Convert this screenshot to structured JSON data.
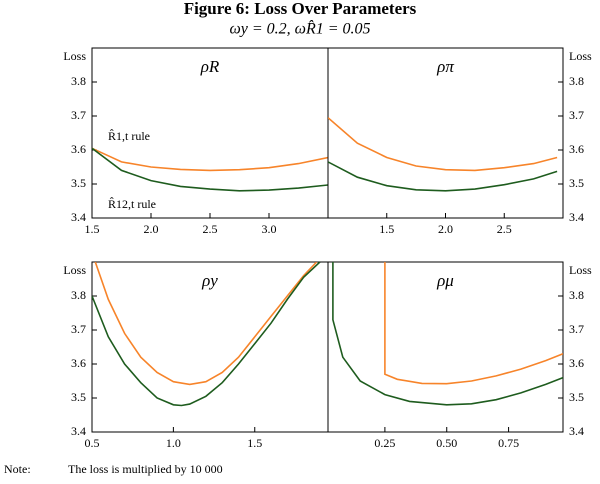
{
  "title": "Figure 6: Loss Over Parameters",
  "subtitle": "ωy = 0.2, ωR̂1 = 0.05",
  "note_label": "Note:",
  "note": "The loss is multiplied by 10 000",
  "chart_data": [
    {
      "type": "line",
      "title": "ρR",
      "ylabel": "Loss",
      "xlim": [
        1.5,
        3.5
      ],
      "xticks": [
        1.5,
        {
          "value": 2.0,
          "label": "2.0"
        },
        2.5,
        {
          "value": 3.0,
          "label": "3.0"
        }
      ],
      "ylim": [
        3.4,
        3.9
      ],
      "yticks": [
        3.4,
        3.5,
        3.6,
        3.7,
        3.8
      ],
      "series": [
        {
          "name": "R̂1,t rule",
          "color": "#f7842a",
          "x": [
            1.5,
            1.75,
            2.0,
            2.25,
            2.5,
            2.75,
            3.0,
            3.25,
            3.5
          ],
          "values": [
            3.605,
            3.565,
            3.55,
            3.543,
            3.54,
            3.542,
            3.548,
            3.56,
            3.578
          ]
        },
        {
          "name": "R̂12,t rule",
          "color": "#1e5c1e",
          "x": [
            1.5,
            1.75,
            2.0,
            2.25,
            2.5,
            2.75,
            3.0,
            3.25,
            3.5
          ],
          "values": [
            3.605,
            3.54,
            3.51,
            3.493,
            3.485,
            3.48,
            3.482,
            3.488,
            3.497
          ]
        }
      ]
    },
    {
      "type": "line",
      "title": "ρπ",
      "ylabel": "Loss",
      "xlim": [
        1.0,
        3.0
      ],
      "xticks": [
        1.5,
        {
          "value": 2.0,
          "label": "2.0"
        },
        2.5
      ],
      "ylim": [
        3.4,
        3.9
      ],
      "yticks": [
        3.4,
        3.5,
        3.6,
        3.7,
        3.8
      ],
      "series": [
        {
          "color": "#f7842a",
          "x": [
            1.0,
            1.25,
            1.5,
            1.75,
            2.0,
            2.25,
            2.5,
            2.75,
            2.95
          ],
          "values": [
            3.695,
            3.62,
            3.578,
            3.553,
            3.542,
            3.54,
            3.548,
            3.56,
            3.578
          ]
        },
        {
          "color": "#1e5c1e",
          "x": [
            1.0,
            1.25,
            1.5,
            1.75,
            2.0,
            2.25,
            2.5,
            2.75,
            2.95
          ],
          "values": [
            3.565,
            3.52,
            3.495,
            3.483,
            3.48,
            3.485,
            3.498,
            3.515,
            3.537
          ]
        }
      ]
    },
    {
      "type": "line",
      "title": "ρy",
      "ylabel": "Loss",
      "xlim": [
        0.5,
        1.95
      ],
      "xticks": [
        0.5,
        {
          "value": 1.0,
          "label": "1.0"
        },
        1.5
      ],
      "ylim": [
        3.4,
        3.9
      ],
      "yticks": [
        3.4,
        3.5,
        3.6,
        3.7,
        3.8
      ],
      "series": [
        {
          "color": "#f7842a",
          "x": [
            0.52,
            0.6,
            0.7,
            0.8,
            0.9,
            1.0,
            1.1,
            1.2,
            1.3,
            1.4,
            1.5,
            1.6,
            1.7,
            1.8,
            1.88
          ],
          "values": [
            3.9,
            3.79,
            3.69,
            3.62,
            3.575,
            3.548,
            3.54,
            3.548,
            3.575,
            3.62,
            3.68,
            3.74,
            3.8,
            3.86,
            3.9
          ]
        },
        {
          "color": "#1e5c1e",
          "x": [
            0.5,
            0.6,
            0.7,
            0.8,
            0.9,
            1.0,
            1.05,
            1.1,
            1.2,
            1.3,
            1.4,
            1.5,
            1.6,
            1.7,
            1.8,
            1.9
          ],
          "values": [
            3.8,
            3.68,
            3.6,
            3.545,
            3.5,
            3.48,
            3.478,
            3.482,
            3.505,
            3.545,
            3.6,
            3.66,
            3.72,
            3.79,
            3.855,
            3.9
          ]
        }
      ]
    },
    {
      "type": "line",
      "title": "ρμ",
      "ylabel": "Loss",
      "xlim": [
        0.02,
        0.97
      ],
      "xticks": [
        0.25,
        {
          "value": 0.5,
          "label": "0.50"
        },
        0.75
      ],
      "ylim": [
        3.4,
        3.9
      ],
      "yticks": [
        3.4,
        3.5,
        3.6,
        3.7,
        3.8
      ],
      "series": [
        {
          "color": "#f7842a",
          "x": [
            0.25,
            0.25,
            0.3,
            0.4,
            0.5,
            0.6,
            0.7,
            0.8,
            0.9,
            0.97
          ],
          "values": [
            3.9,
            3.57,
            3.555,
            3.543,
            3.542,
            3.55,
            3.565,
            3.585,
            3.61,
            3.63
          ]
        },
        {
          "color": "#1e5c1e",
          "x": [
            0.04,
            0.04,
            0.08,
            0.15,
            0.25,
            0.35,
            0.5,
            0.6,
            0.7,
            0.8,
            0.9,
            0.97
          ],
          "values": [
            3.9,
            3.73,
            3.62,
            3.55,
            3.51,
            3.49,
            3.48,
            3.483,
            3.495,
            3.515,
            3.54,
            3.56
          ]
        }
      ]
    }
  ]
}
